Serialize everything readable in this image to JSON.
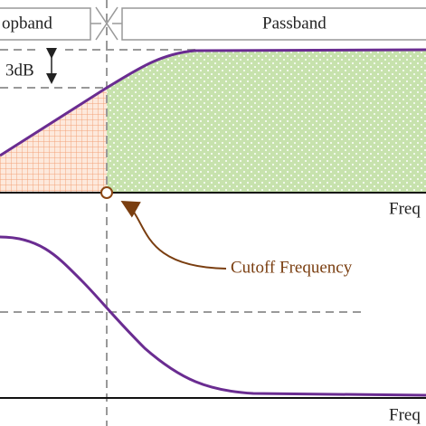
{
  "header": {
    "left_band": "opband",
    "right_band": "Passband"
  },
  "upper_plot": {
    "attenuation_label": "3dB",
    "x_axis_label": "Freq"
  },
  "annotation": {
    "label": "Cutoff Frequency"
  },
  "lower_plot": {
    "x_axis_label": "Freq"
  }
}
